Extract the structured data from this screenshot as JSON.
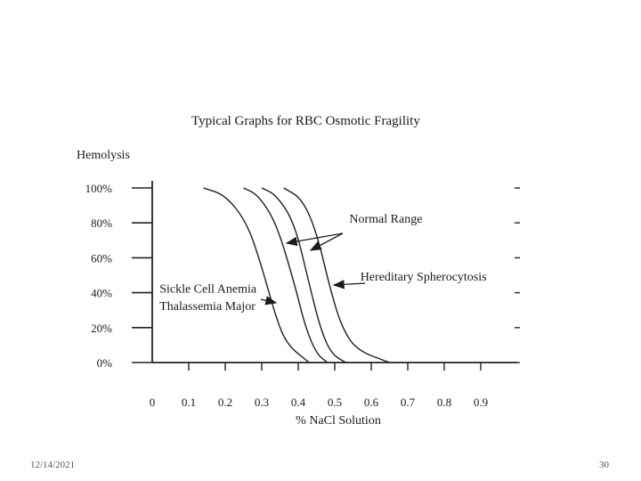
{
  "slide": {
    "footer_date": "12/14/2021",
    "page_number": "30"
  },
  "chart_data": {
    "type": "line",
    "title": "Typical Graphs for RBC Osmotic Fragility",
    "ylabel": "Hemolysis",
    "xlabel": "% NaCl Solution",
    "x_ticks": [
      "0",
      "0.1",
      "0.2",
      "0.3",
      "0.4",
      "0.5",
      "0.6",
      "0.7",
      "0.8",
      "0.9"
    ],
    "y_ticks": [
      "0%",
      "20%",
      "40%",
      "60%",
      "80%",
      "100%"
    ],
    "xlim": [
      0,
      1.0
    ],
    "ylim": [
      0,
      100
    ],
    "grid": false,
    "series": [
      {
        "name": "Sickle Cell Anemia / Thalassemia Major",
        "points": [
          [
            0.14,
            100
          ],
          [
            0.2,
            96
          ],
          [
            0.26,
            80
          ],
          [
            0.3,
            55
          ],
          [
            0.34,
            25
          ],
          [
            0.37,
            10
          ],
          [
            0.43,
            0
          ]
        ]
      },
      {
        "name": "Normal Range (lower)",
        "points": [
          [
            0.25,
            100
          ],
          [
            0.29,
            96
          ],
          [
            0.34,
            80
          ],
          [
            0.39,
            45
          ],
          [
            0.42,
            20
          ],
          [
            0.45,
            5
          ],
          [
            0.48,
            0
          ]
        ]
      },
      {
        "name": "Normal Range (upper)",
        "points": [
          [
            0.3,
            100
          ],
          [
            0.34,
            96
          ],
          [
            0.39,
            80
          ],
          [
            0.43,
            45
          ],
          [
            0.46,
            20
          ],
          [
            0.49,
            5
          ],
          [
            0.53,
            0
          ]
        ]
      },
      {
        "name": "Hereditary Spherocytosis",
        "points": [
          [
            0.36,
            100
          ],
          [
            0.41,
            94
          ],
          [
            0.45,
            75
          ],
          [
            0.49,
            40
          ],
          [
            0.52,
            20
          ],
          [
            0.56,
            7
          ],
          [
            0.65,
            0
          ]
        ]
      }
    ],
    "annotations": [
      {
        "name": "label-normal-range",
        "text": "Normal Range",
        "x": 0.54,
        "y": 80
      },
      {
        "name": "label-hereditary-spherocytosis",
        "text": "Hereditary Spherocytosis",
        "x": 0.57,
        "y": 47
      },
      {
        "name": "label-sickle-cell-anemia",
        "text": "Sickle Cell Anemia",
        "x": 0.02,
        "y": 40
      },
      {
        "name": "label-thalassemia-major",
        "text": "Thalassemia Major",
        "x": 0.02,
        "y": 30
      }
    ]
  }
}
